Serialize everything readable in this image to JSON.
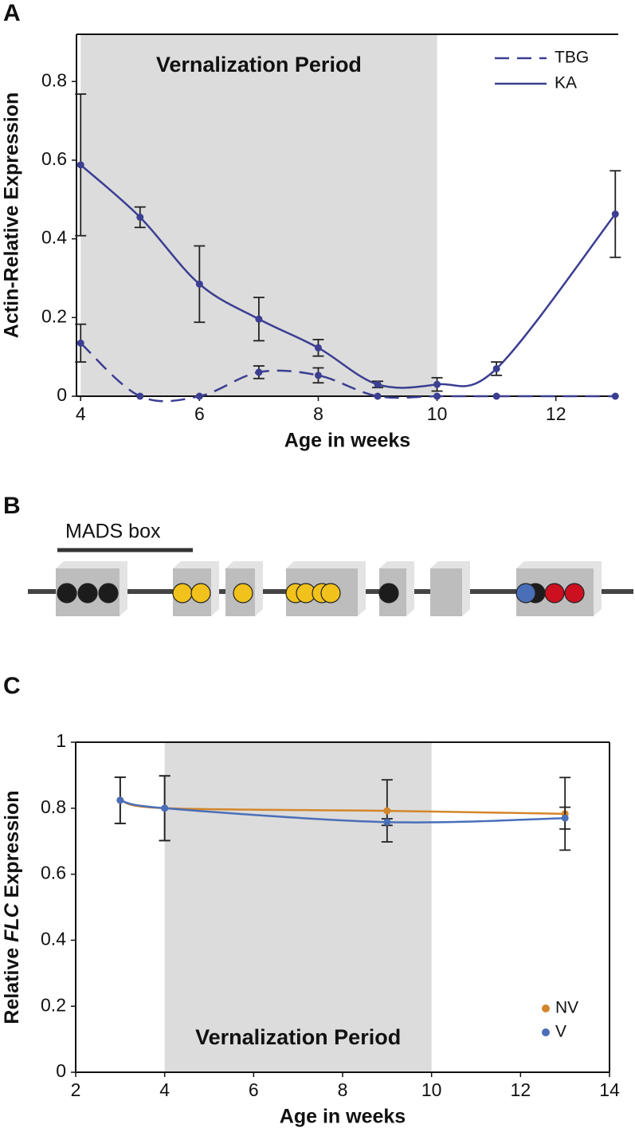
{
  "panel_labels": [
    "A",
    "B",
    "C"
  ],
  "chart_data": [
    {
      "type": "line",
      "xlabel": "Age in weeks",
      "ylabel": "Actin-Relative Expression",
      "x": [
        4,
        5,
        6,
        7,
        8,
        9,
        10,
        11,
        13
      ],
      "series": [
        {
          "name": "TBG",
          "color": "#3b3e91",
          "dashed": true,
          "values": [
            0.135,
            0,
            0,
            0.061,
            0.053,
            0,
            0,
            0,
            0
          ],
          "errors": [
            0.048,
            null,
            null,
            0.016,
            0.019,
            null,
            null,
            null,
            null
          ]
        },
        {
          "name": "KA",
          "color": "#3b3e91",
          "dashed": false,
          "values": [
            0.588,
            0.455,
            0.285,
            0.196,
            0.123,
            0.03,
            0.03,
            0.07,
            0.463
          ],
          "errors": [
            0.18,
            0.026,
            0.097,
            0.055,
            0.021,
            0.008,
            0.017,
            0.017,
            0.11
          ]
        }
      ],
      "xlim": [
        3.93,
        13.05
      ],
      "ylim": [
        0,
        0.92
      ],
      "xticks": [
        4,
        6,
        8,
        10,
        12
      ],
      "yticks": [
        0,
        0.2,
        0.4,
        0.6,
        0.8
      ],
      "shade": [
        4,
        10
      ],
      "annotation": "Vernalization Period",
      "annotation_position": "top",
      "legend": "upper right",
      "legend_marker": "line"
    },
    {
      "type": "line",
      "xlabel": "Age in weeks",
      "ylabel_parts": [
        "Relative ",
        "FLC",
        " Expression"
      ],
      "x": [
        3,
        4,
        9,
        13
      ],
      "series": [
        {
          "name": "NV",
          "color": "#d4862a",
          "dashed": false,
          "values": [
            0.824,
            0.8,
            0.792,
            0.783
          ],
          "errors": [
            0.07,
            0.098,
            0.094,
            0.11
          ]
        },
        {
          "name": "V",
          "color": "#4a6fb8",
          "dashed": false,
          "values": [
            0.824,
            0.8,
            0.758,
            0.77
          ],
          "errors": [
            0.07,
            0.098,
            0.01,
            0.033
          ]
        }
      ],
      "xlim": [
        2,
        14
      ],
      "ylim": [
        0,
        1
      ],
      "xticks": [
        2,
        4,
        6,
        8,
        10,
        12,
        14
      ],
      "yticks": [
        0,
        0.2,
        0.4,
        0.6,
        0.8,
        1
      ],
      "shade": [
        4,
        10
      ],
      "annotation": "Vernalization Period",
      "annotation_position": "bottom",
      "legend": "lower right",
      "legend_marker": "dot",
      "frame": true
    }
  ],
  "diagram": {
    "label": "MADS box"
  }
}
